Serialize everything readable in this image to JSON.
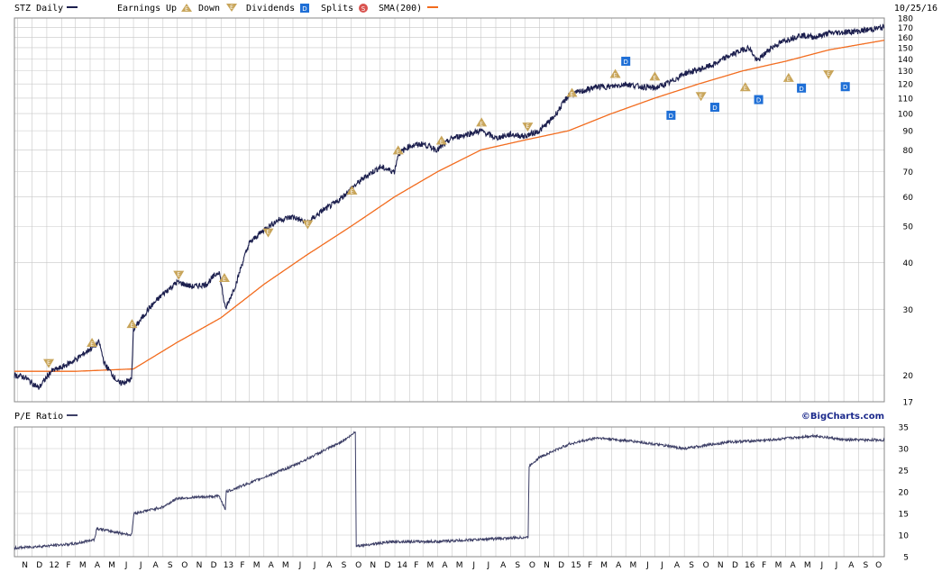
{
  "header": {
    "ticker_label": "STZ Daily",
    "earnings_label": "Earnings",
    "up_label": "Up",
    "down_label": "Down",
    "dividends_label": "Dividends",
    "splits_label": "Splits",
    "sma_label": "SMA(200)",
    "date": "10/25/16"
  },
  "pe_header": {
    "label": "P/E Ratio"
  },
  "brand": "©BigCharts.com",
  "colors": {
    "price": "#1c1f4e",
    "sma": "#f26b1d",
    "earnings": "#c8a55a",
    "dividend": "#1f6fd6",
    "split": "#d9534f",
    "grid": "#c8c8c8",
    "pe": "#3d3f66"
  },
  "icons": {
    "earnings_up": "triangle-up-icon",
    "earnings_down": "triangle-down-icon",
    "dividend": "dividend-square-icon",
    "split": "split-circle-icon"
  },
  "chart_data": [
    {
      "type": "line",
      "name_shown": "STZ Daily",
      "scale": "log",
      "y_ticks": [
        17,
        20,
        30,
        40,
        50,
        60,
        70,
        80,
        90,
        100,
        110,
        120,
        130,
        140,
        150,
        160,
        170,
        180
      ],
      "y_tick_labels": [
        "17",
        "20",
        "30",
        "40",
        "50",
        "60",
        "70",
        "80",
        "90",
        "100",
        "110",
        "120",
        "130",
        "140",
        "150",
        "160",
        "170",
        "180"
      ],
      "x_range": [
        "2011-10-25",
        "2016-10-25"
      ],
      "series": [
        {
          "name": "STZ Daily",
          "type": "line",
          "x": [
            "2011-10-25",
            "2011-11-15",
            "2011-12-15",
            "2012-01-10",
            "2012-02-01",
            "2012-03-01",
            "2012-04-01",
            "2012-04-20",
            "2012-05-01",
            "2012-06-01",
            "2012-06-27",
            "2012-07-01",
            "2012-08-01",
            "2012-09-01",
            "2012-10-01",
            "2012-11-01",
            "2012-12-01",
            "2012-12-28",
            "2013-01-10",
            "2013-02-01",
            "2013-02-15",
            "2013-03-01",
            "2013-04-01",
            "2013-05-01",
            "2013-06-01",
            "2013-07-01",
            "2013-08-01",
            "2013-09-01",
            "2013-10-01",
            "2013-11-01",
            "2013-12-01",
            "2013-12-31",
            "2014-01-08",
            "2014-02-01",
            "2014-03-01",
            "2014-04-01",
            "2014-05-01",
            "2014-06-01",
            "2014-07-01",
            "2014-08-01",
            "2014-09-01",
            "2014-10-01",
            "2014-11-01",
            "2014-12-01",
            "2015-01-01",
            "2015-02-01",
            "2015-03-01",
            "2015-04-01",
            "2015-05-01",
            "2015-06-01",
            "2015-07-01",
            "2015-08-01",
            "2015-09-01",
            "2015-10-01",
            "2015-11-01",
            "2015-12-01",
            "2016-01-01",
            "2016-01-15",
            "2016-02-01",
            "2016-03-01",
            "2016-04-01",
            "2016-05-01",
            "2016-06-01",
            "2016-07-01",
            "2016-08-01",
            "2016-09-01",
            "2016-10-25"
          ],
          "y": [
            20.0,
            19.8,
            18.5,
            20.5,
            21.0,
            22.0,
            23.5,
            24.5,
            21.5,
            19.0,
            19.5,
            26.5,
            30.0,
            33.0,
            35.5,
            34.5,
            35.0,
            38.0,
            30.0,
            35.0,
            40.0,
            45.0,
            49.0,
            52.0,
            53.0,
            51.0,
            55.0,
            58.0,
            63.0,
            68.0,
            72.0,
            70.0,
            78.0,
            82.0,
            83.0,
            80.0,
            86.0,
            88.0,
            90.0,
            86.0,
            88.0,
            87.0,
            90.0,
            98.0,
            112.0,
            115.0,
            118.0,
            118.0,
            120.0,
            118.0,
            117.0,
            121.0,
            128.0,
            131.0,
            135.0,
            142.0,
            148.0,
            150.0,
            138.0,
            150.0,
            157.0,
            162.0,
            160.0,
            164.0,
            165.0,
            166.0,
            170.0
          ]
        },
        {
          "name": "SMA(200)",
          "type": "line",
          "x": [
            "2011-10-25",
            "2012-03-01",
            "2012-07-01",
            "2012-10-01",
            "2013-01-01",
            "2013-04-01",
            "2013-07-01",
            "2013-10-01",
            "2014-01-01",
            "2014-04-01",
            "2014-07-01",
            "2014-10-01",
            "2015-01-01",
            "2015-04-01",
            "2015-07-01",
            "2015-10-01",
            "2016-01-01",
            "2016-04-01",
            "2016-07-01",
            "2016-10-25"
          ],
          "y": [
            20.5,
            20.5,
            20.8,
            24.5,
            28.5,
            35.0,
            42.0,
            50.0,
            60.0,
            70.0,
            80.0,
            85.0,
            90.0,
            100.0,
            110.0,
            120.0,
            130.0,
            138.0,
            148.0,
            157.0
          ]
        }
      ],
      "earnings_markers": [
        {
          "date": "2012-01-05",
          "dir": "down",
          "price": 21.5
        },
        {
          "date": "2012-04-05",
          "dir": "up",
          "price": 24.5
        },
        {
          "date": "2012-06-28",
          "dir": "up",
          "price": 27.5
        },
        {
          "date": "2012-10-04",
          "dir": "down",
          "price": 37.0
        },
        {
          "date": "2013-01-08",
          "dir": "up",
          "price": 36.5
        },
        {
          "date": "2013-04-10",
          "dir": "down",
          "price": 48.0
        },
        {
          "date": "2013-07-02",
          "dir": "down",
          "price": 50.5
        },
        {
          "date": "2013-10-03",
          "dir": "up",
          "price": 62.5
        },
        {
          "date": "2014-01-08",
          "dir": "up",
          "price": 80.0
        },
        {
          "date": "2014-04-09",
          "dir": "up",
          "price": 85.0
        },
        {
          "date": "2014-07-02",
          "dir": "up",
          "price": 95.0
        },
        {
          "date": "2014-10-07",
          "dir": "down",
          "price": 92.0
        },
        {
          "date": "2015-01-08",
          "dir": "up",
          "price": 114.0
        },
        {
          "date": "2015-04-09",
          "dir": "up",
          "price": 128.0
        },
        {
          "date": "2015-07-01",
          "dir": "up",
          "price": 126.0
        },
        {
          "date": "2015-10-06",
          "dir": "down",
          "price": 111.0
        },
        {
          "date": "2016-01-07",
          "dir": "up",
          "price": 118.0
        },
        {
          "date": "2016-04-07",
          "dir": "up",
          "price": 125.0
        },
        {
          "date": "2016-06-30",
          "dir": "down",
          "price": 127.0
        }
      ],
      "dividend_markers": [
        {
          "date": "2015-05-01",
          "price": 138.0
        },
        {
          "date": "2015-08-04",
          "price": 99.0
        },
        {
          "date": "2015-11-04",
          "price": 104.0
        },
        {
          "date": "2016-02-04",
          "price": 109.0
        },
        {
          "date": "2016-05-04",
          "price": 117.0
        },
        {
          "date": "2016-08-04",
          "price": 118.0
        }
      ],
      "x_tick_labels": [
        "N",
        "D",
        "12",
        "F",
        "M",
        "A",
        "M",
        "J",
        "J",
        "A",
        "S",
        "O",
        "N",
        "D",
        "13",
        "F",
        "M",
        "A",
        "M",
        "J",
        "J",
        "A",
        "S",
        "O",
        "N",
        "D",
        "14",
        "F",
        "M",
        "A",
        "M",
        "J",
        "J",
        "A",
        "S",
        "O",
        "N",
        "D",
        "15",
        "F",
        "M",
        "A",
        "M",
        "J",
        "J",
        "A",
        "S",
        "O",
        "N",
        "D",
        "16",
        "F",
        "M",
        "A",
        "M",
        "J",
        "J",
        "A",
        "S",
        "O"
      ]
    },
    {
      "type": "line",
      "name_shown": "P/E Ratio",
      "ylim": [
        5,
        35
      ],
      "y_ticks": [
        5,
        10,
        15,
        20,
        25,
        30,
        35
      ],
      "y_tick_labels": [
        "5",
        "10",
        "15",
        "20",
        "25",
        "30",
        "35"
      ],
      "series": [
        {
          "name": "P/E Ratio",
          "x": [
            "2011-10-25",
            "2012-01-01",
            "2012-03-01",
            "2012-04-10",
            "2012-04-15",
            "2012-06-27",
            "2012-07-02",
            "2012-09-01",
            "2012-10-01",
            "2012-12-28",
            "2013-01-10",
            "2013-01-12",
            "2013-03-01",
            "2013-06-01",
            "2013-09-01",
            "2013-10-01",
            "2013-10-10",
            "2013-10-12",
            "2014-01-01",
            "2014-04-01",
            "2014-07-01",
            "2014-10-08",
            "2014-10-10",
            "2014-11-01",
            "2015-01-01",
            "2015-03-01",
            "2015-06-01",
            "2015-09-01",
            "2015-12-01",
            "2016-03-01",
            "2016-06-01",
            "2016-08-01",
            "2016-10-25"
          ],
          "y": [
            7.0,
            7.5,
            8.0,
            9.0,
            11.5,
            10.0,
            15.0,
            16.5,
            18.5,
            19.0,
            16.0,
            20.0,
            22.0,
            26.0,
            31.0,
            33.0,
            34.0,
            7.5,
            8.5,
            8.5,
            9.0,
            9.5,
            26.0,
            28.0,
            31.0,
            32.5,
            31.5,
            30.0,
            31.5,
            32.0,
            33.0,
            32.0,
            32.0
          ]
        }
      ]
    }
  ]
}
